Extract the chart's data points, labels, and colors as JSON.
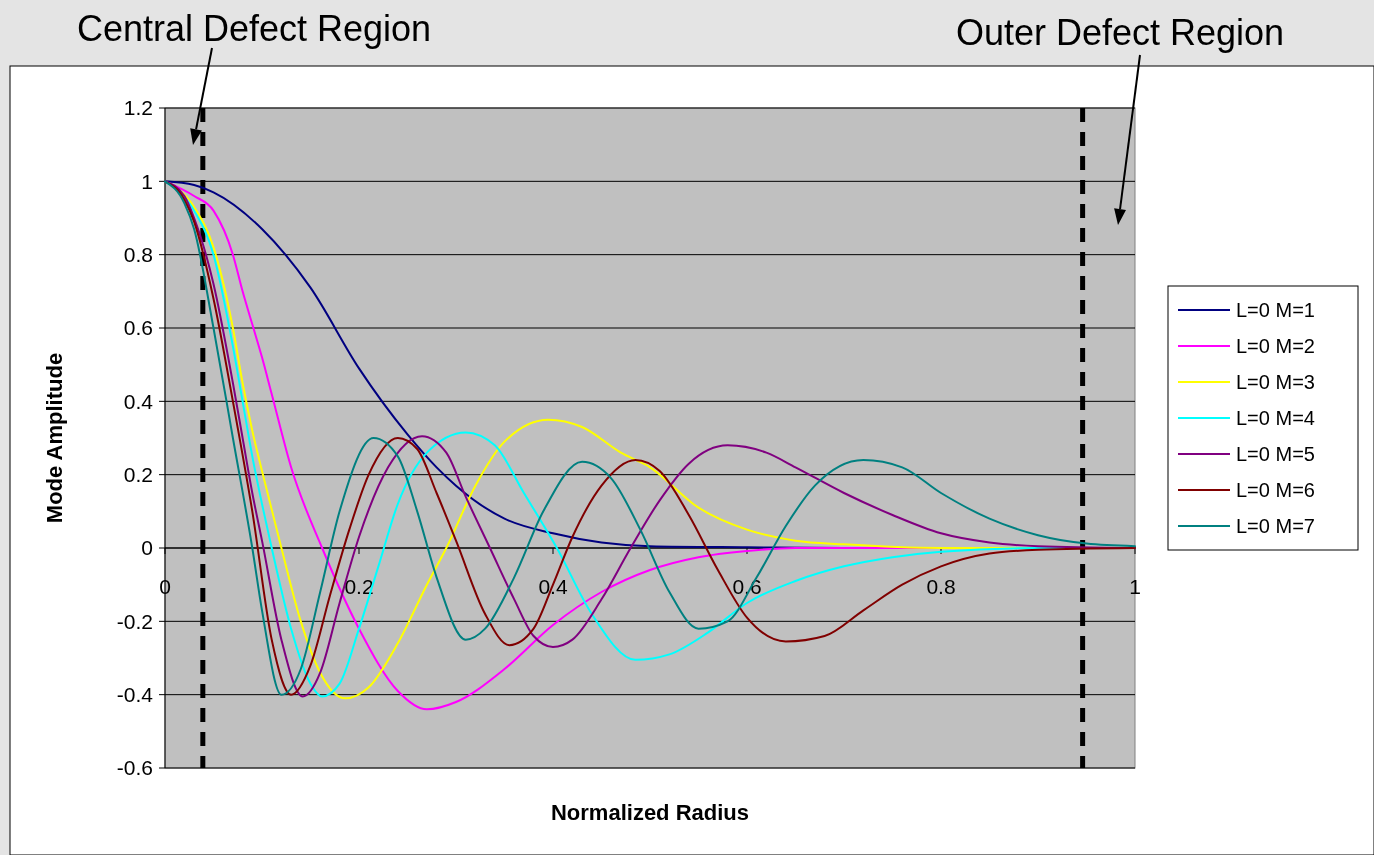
{
  "chart_data": {
    "type": "line",
    "xlabel": "Normalized Radius",
    "ylabel": "Mode Amplitude",
    "xlim": [
      0,
      1
    ],
    "xticks": [
      0,
      0.2,
      0.4,
      0.6,
      0.8,
      1
    ],
    "ylim": [
      -0.6,
      1.2
    ],
    "yticks": [
      -0.6,
      -0.4,
      -0.2,
      0,
      0.2,
      0.4,
      0.6,
      0.8,
      1,
      1.2
    ],
    "grid": "y",
    "legend": "right",
    "marker": "none",
    "line_style": "solid",
    "ref_lines": [
      {
        "axis": "x",
        "value": 0.039,
        "color": "#000000",
        "line_style": "dashed"
      },
      {
        "axis": "x",
        "value": 0.946,
        "color": "#000000",
        "line_style": "dashed"
      }
    ],
    "annotations": [
      "Central Defect Region",
      "Outer Defect Region"
    ],
    "series": [
      {
        "name": "L=0 M=1",
        "color": "#000080",
        "x": [
          0,
          0.03,
          0.05,
          0.1,
          0.15,
          0.2,
          0.25,
          0.28,
          0.3,
          0.35,
          0.4,
          0.45,
          0.5,
          0.6,
          0.7,
          1
        ],
        "values": [
          1,
          0.99,
          0.97,
          0.87,
          0.71,
          0.49,
          0.31,
          0.22,
          0.17,
          0.08,
          0.04,
          0.015,
          0.005,
          0.002,
          0,
          0
        ]
      },
      {
        "name": "L=0 M=2",
        "color": "#ff00ff",
        "x": [
          0,
          0.03,
          0.05,
          0.07,
          0.08,
          0.09,
          0.1,
          0.11,
          0.13,
          0.162,
          0.2,
          0.24,
          0.27,
          0.3,
          0.35,
          0.4,
          0.45,
          0.5,
          0.55,
          0.6,
          0.65,
          1
        ],
        "values": [
          1,
          0.96,
          0.92,
          0.8,
          0.7,
          0.61,
          0.52,
          0.42,
          0.22,
          0,
          -0.22,
          -0.39,
          -0.44,
          -0.42,
          -0.33,
          -0.21,
          -0.12,
          -0.06,
          -0.025,
          -0.008,
          0,
          0
        ]
      },
      {
        "name": "L=0 M=3",
        "color": "#ffff00",
        "x": [
          0,
          0.03,
          0.05,
          0.07,
          0.08,
          0.09,
          0.1,
          0.12,
          0.14,
          0.16,
          0.186,
          0.21,
          0.24,
          0.27,
          0.29,
          0.32,
          0.35,
          0.395,
          0.43,
          0.47,
          0.5,
          0.55,
          0.6,
          0.65,
          0.7,
          0.8,
          1
        ],
        "values": [
          1,
          0.93,
          0.82,
          0.6,
          0.45,
          0.32,
          0.21,
          0,
          -0.2,
          -0.34,
          -0.41,
          -0.38,
          -0.26,
          -0.1,
          0,
          0.17,
          0.29,
          0.35,
          0.33,
          0.26,
          0.22,
          0.11,
          0.05,
          0.02,
          0.01,
          0,
          0
        ]
      },
      {
        "name": "L=0 M=4",
        "color": "#00ffff",
        "x": [
          0,
          0.03,
          0.05,
          0.07,
          0.08,
          0.09,
          0.1,
          0.11,
          0.13,
          0.15,
          0.162,
          0.18,
          0.2,
          0.22,
          0.24,
          0.27,
          0.31,
          0.34,
          0.37,
          0.404,
          0.44,
          0.485,
          0.52,
          0.56,
          0.6,
          0.65,
          0.7,
          0.75,
          0.8,
          0.9,
          1
        ],
        "values": [
          1,
          0.92,
          0.8,
          0.55,
          0.4,
          0.25,
          0.12,
          0,
          -0.22,
          -0.37,
          -0.405,
          -0.37,
          -0.22,
          -0.05,
          0.12,
          0.26,
          0.315,
          0.28,
          0.15,
          0,
          -0.18,
          -0.305,
          -0.29,
          -0.23,
          -0.15,
          -0.09,
          -0.05,
          -0.025,
          -0.01,
          0,
          0
        ]
      },
      {
        "name": "L=0 M=5",
        "color": "#800080",
        "x": [
          0,
          0.02,
          0.03,
          0.05,
          0.07,
          0.08,
          0.09,
          0.1,
          0.12,
          0.142,
          0.16,
          0.18,
          0.2,
          0.23,
          0.265,
          0.29,
          0.31,
          0.335,
          0.36,
          0.38,
          0.4,
          0.42,
          0.45,
          0.48,
          0.51,
          0.54,
          0.58,
          0.62,
          0.65,
          0.7,
          0.75,
          0.8,
          0.85,
          0.9,
          1
        ],
        "values": [
          1,
          0.96,
          0.9,
          0.72,
          0.45,
          0.3,
          0.15,
          0.02,
          -0.25,
          -0.405,
          -0.34,
          -0.15,
          0.03,
          0.22,
          0.305,
          0.26,
          0.14,
          0,
          -0.14,
          -0.24,
          -0.27,
          -0.25,
          -0.14,
          0,
          0.13,
          0.23,
          0.28,
          0.26,
          0.22,
          0.15,
          0.09,
          0.04,
          0.015,
          0.005,
          0
        ]
      },
      {
        "name": "L=0 M=6",
        "color": "#800000",
        "x": [
          0,
          0.02,
          0.03,
          0.05,
          0.07,
          0.09,
          0.11,
          0.13,
          0.15,
          0.17,
          0.19,
          0.21,
          0.24,
          0.26,
          0.28,
          0.3,
          0.33,
          0.355,
          0.38,
          0.4,
          0.42,
          0.45,
          0.485,
          0.51,
          0.54,
          0.57,
          0.6,
          0.64,
          0.68,
          0.72,
          0.76,
          0.8,
          0.85,
          0.9,
          1
        ],
        "values": [
          1,
          0.95,
          0.89,
          0.68,
          0.4,
          0.1,
          -0.25,
          -0.4,
          -0.32,
          -0.13,
          0.05,
          0.2,
          0.3,
          0.27,
          0.15,
          0.02,
          -0.18,
          -0.265,
          -0.22,
          -0.1,
          0.03,
          0.17,
          0.24,
          0.21,
          0.09,
          -0.06,
          -0.19,
          -0.255,
          -0.24,
          -0.17,
          -0.1,
          -0.05,
          -0.015,
          -0.005,
          0
        ]
      },
      {
        "name": "L=0 M=7",
        "color": "#008080",
        "x": [
          0,
          0.02,
          0.03,
          0.05,
          0.07,
          0.09,
          0.1,
          0.12,
          0.14,
          0.16,
          0.18,
          0.215,
          0.24,
          0.26,
          0.28,
          0.31,
          0.33,
          0.36,
          0.39,
          0.43,
          0.46,
          0.49,
          0.52,
          0.55,
          0.58,
          0.61,
          0.64,
          0.67,
          0.72,
          0.76,
          0.8,
          0.85,
          0.9,
          0.95,
          1
        ],
        "values": [
          1,
          0.94,
          0.87,
          0.6,
          0.3,
          0,
          -0.17,
          -0.4,
          -0.33,
          -0.12,
          0.1,
          0.3,
          0.25,
          0.1,
          -0.08,
          -0.25,
          -0.22,
          -0.08,
          0.1,
          0.235,
          0.19,
          0.05,
          -0.12,
          -0.22,
          -0.2,
          -0.08,
          0.06,
          0.17,
          0.24,
          0.22,
          0.15,
          0.08,
          0.035,
          0.012,
          0.005
        ]
      }
    ]
  }
}
